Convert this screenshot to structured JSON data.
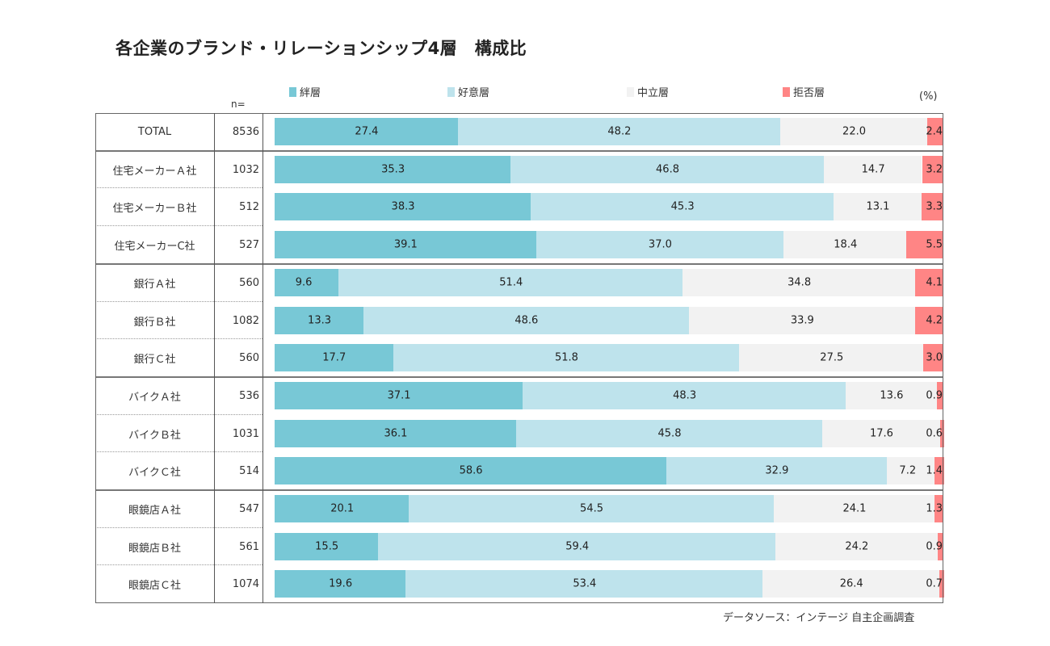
{
  "chart_data": {
    "type": "bar",
    "orientation": "horizontal",
    "stacked": true,
    "title": "各企業のブランド・リレーションシップ4層　構成比",
    "unit": "(%)",
    "n_header": "n=",
    "source": "データソース：インテージ 自主企画調査",
    "xlim": [
      0,
      100
    ],
    "legend_position": "top",
    "series": [
      {
        "name": "絆層",
        "color": "#78C8D6"
      },
      {
        "name": "好意層",
        "color": "#BEE3EC"
      },
      {
        "name": "中立層",
        "color": "#F2F2F2"
      },
      {
        "name": "拒否層",
        "color": "#FF8585"
      }
    ],
    "rows": [
      {
        "label": "TOTAL",
        "n": "8536",
        "values": [
          27.4,
          48.2,
          22.0,
          2.4
        ],
        "labels": [
          "27.4",
          "48.2",
          "22.0",
          "2.4"
        ],
        "group": 0
      },
      {
        "label": "住宅メーカーＡ社",
        "n": "1032",
        "values": [
          35.3,
          46.8,
          14.7,
          3.2
        ],
        "labels": [
          "35.3",
          "46.8",
          "14.7",
          "3.2"
        ],
        "group": 1
      },
      {
        "label": "住宅メーカーＢ社",
        "n": "512",
        "values": [
          38.3,
          45.3,
          13.1,
          3.3
        ],
        "labels": [
          "38.3",
          "45.3",
          "13.1",
          "3.3"
        ],
        "group": 1
      },
      {
        "label": "住宅メーカーC社",
        "n": "527",
        "values": [
          39.1,
          37.0,
          18.4,
          5.5
        ],
        "labels": [
          "39.1",
          "37.0",
          "18.4",
          "5.5"
        ],
        "group": 1
      },
      {
        "label": "銀行Ａ社",
        "n": "560",
        "values": [
          9.6,
          51.4,
          34.8,
          4.1
        ],
        "labels": [
          "9.6",
          "51.4",
          "34.8",
          "4.1"
        ],
        "group": 2
      },
      {
        "label": "銀行Ｂ社",
        "n": "1082",
        "values": [
          13.3,
          48.6,
          33.9,
          4.2
        ],
        "labels": [
          "13.3",
          "48.6",
          "33.9",
          "4.2"
        ],
        "group": 2
      },
      {
        "label": "銀行Ｃ社",
        "n": "560",
        "values": [
          17.7,
          51.8,
          27.5,
          3.0
        ],
        "labels": [
          "17.7",
          "51.8",
          "27.5",
          "3.0"
        ],
        "group": 2
      },
      {
        "label": "バイクＡ社",
        "n": "536",
        "values": [
          37.1,
          48.3,
          13.6,
          0.9
        ],
        "labels": [
          "37.1",
          "48.3",
          "13.6",
          "0.9"
        ],
        "group": 3
      },
      {
        "label": "バイクＢ社",
        "n": "1031",
        "values": [
          36.1,
          45.8,
          17.6,
          0.6
        ],
        "labels": [
          "36.1",
          "45.8",
          "17.6",
          "0.6"
        ],
        "group": 3
      },
      {
        "label": "バイクＣ社",
        "n": "514",
        "values": [
          58.6,
          32.9,
          7.2,
          1.4
        ],
        "labels": [
          "58.6",
          "32.9",
          "7.2",
          "1.4"
        ],
        "group": 3
      },
      {
        "label": "眼鏡店Ａ社",
        "n": "547",
        "values": [
          20.1,
          54.5,
          24.1,
          1.3
        ],
        "labels": [
          "20.1",
          "54.5",
          "24.1",
          "1.3"
        ],
        "group": 4
      },
      {
        "label": "眼鏡店Ｂ社",
        "n": "561",
        "values": [
          15.5,
          59.4,
          24.2,
          0.9
        ],
        "labels": [
          "15.5",
          "59.4",
          "24.2",
          "0.9"
        ],
        "group": 4
      },
      {
        "label": "眼鏡店Ｃ社",
        "n": "1074",
        "values": [
          19.6,
          53.4,
          26.4,
          0.7
        ],
        "labels": [
          "19.6",
          "53.4",
          "26.4",
          "0.7"
        ],
        "group": 4
      }
    ]
  }
}
